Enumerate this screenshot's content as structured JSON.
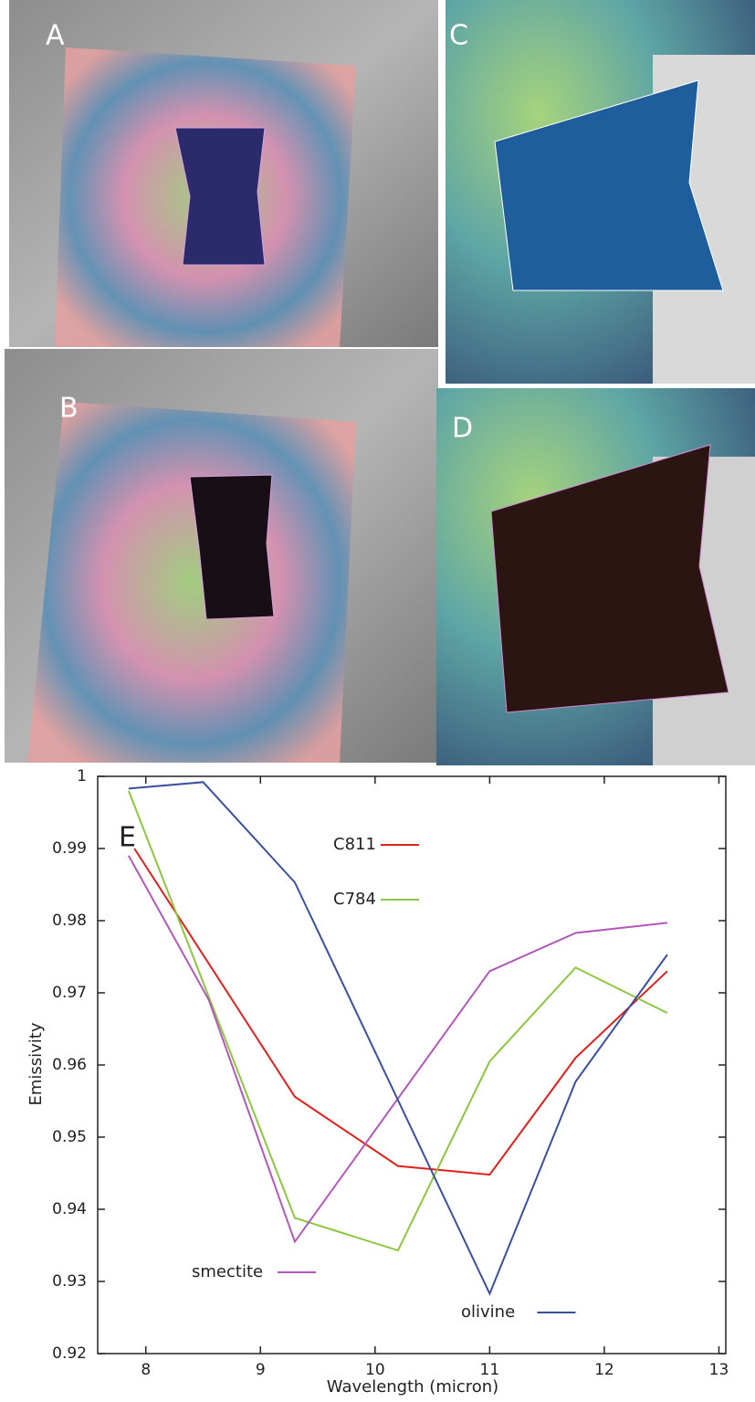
{
  "panels": {
    "labels": [
      "A",
      "B",
      "C",
      "D",
      "E"
    ]
  },
  "chart_data": {
    "type": "line",
    "xlabel": "Wavelength (micron)",
    "ylabel": "Emissivity",
    "xlim": [
      7.58,
      13.06
    ],
    "ylim": [
      0.92,
      1
    ],
    "xticks": [
      8,
      9,
      10,
      11,
      12,
      13
    ],
    "yticks": [
      0.92,
      0.93,
      0.94,
      0.95,
      0.96,
      0.97,
      0.98,
      0.99,
      1
    ],
    "series": [
      {
        "name": "C811",
        "color": "#e0201c",
        "x": [
          7.9,
          9.3,
          10.2,
          11.0,
          11.75,
          12.55
        ],
        "values": [
          0.99,
          0.9556,
          0.946,
          0.9448,
          0.961,
          0.973
        ]
      },
      {
        "name": "C784",
        "color": "#8cc63f",
        "x": [
          7.85,
          9.3,
          10.2,
          11.0,
          11.75,
          12.55
        ],
        "values": [
          0.998,
          0.9388,
          0.9343,
          0.9605,
          0.9735,
          0.9672
        ]
      },
      {
        "name": "smectite",
        "color": "#b158b8",
        "x": [
          7.85,
          8.55,
          9.3,
          11.0,
          11.75,
          12.55
        ],
        "values": [
          0.989,
          0.969,
          0.9355,
          0.973,
          0.9783,
          0.9797
        ]
      },
      {
        "name": "olivine",
        "color": "#3b4fa0",
        "x": [
          7.85,
          8.5,
          9.3,
          11.0,
          11.75,
          12.55
        ],
        "values": [
          0.9983,
          0.9992,
          0.9853,
          0.9283,
          0.9577,
          0.9753
        ]
      }
    ]
  }
}
